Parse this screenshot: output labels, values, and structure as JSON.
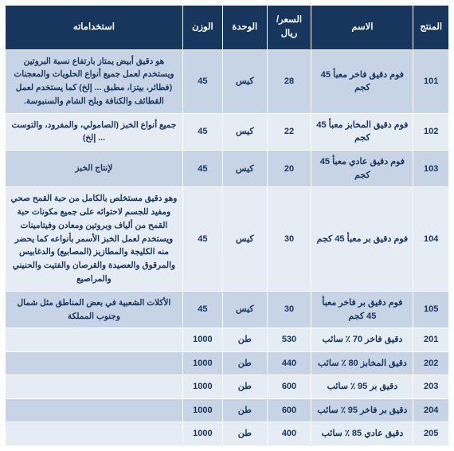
{
  "columns": {
    "product": "المنتج",
    "name": "الاسم",
    "price": "السعر/ ريال",
    "unit": "الوحدة",
    "weight": "الوزن",
    "uses": "استخداماته"
  },
  "rows": [
    {
      "product": "101",
      "name": "فوم دقيق فاخر معبأ 45 كجم",
      "price": "28",
      "unit": "كيس",
      "weight": "45",
      "uses": "هو دقيق أبيض يمتاز بارتفاع نسبة البروتين ويستخدم لعمل جميع أنواع الحلويات والمعجنات (فطائر، بيتزا، مطبق ... إلخ) كما يستخدم لعمل القطائف والكنافة وبلح الشام والسنبوسة."
    },
    {
      "product": "102",
      "name": "فوم دقيق المخابز معبأ 45 كجم",
      "price": "22",
      "unit": "كيس",
      "weight": "45",
      "uses": "جميع أنواع الخبز (الصامولي، والمفرود، والتوست ... إلخ)"
    },
    {
      "product": "103",
      "name": "فوم دقيق عادي معبأ 45 كجم",
      "price": "20",
      "unit": "كيس",
      "weight": "45",
      "uses": "لإنتاج الخبز"
    },
    {
      "product": "104",
      "name": "فوم دقيق بر معبأ 45 كجم",
      "price": "30",
      "unit": "كيس",
      "weight": "45",
      "uses": "وهو دقيق مستخلص بالكامل من حبة القمح صحي ومفيد للجسم لاحتوائه على جميع مكونات حبة القمح من ألياف وبروتين ومعادن وفيتامينات ويستخدم لعمل الخبز الأسمر بأنواعه كما يحضر منه الكليجة والمطازيز (المصابيع) والدغابيس والمرقوق والعصيدة والقرصان والفتيت والحنيني والمراصيع"
    },
    {
      "product": "105",
      "name": "فوم دقيق بر فاخر معبأ 45 كجم",
      "price": "30",
      "unit": "كيس",
      "weight": "45",
      "uses": "الأكلات الشعبية في بعض المناطق مثل شمال وجنوب المملكة"
    },
    {
      "product": "201",
      "name": "دقيق فاخر 70 ٪ سائب",
      "price": "530",
      "unit": "طن",
      "weight": "1000",
      "uses": ""
    },
    {
      "product": "202",
      "name": "دقيق المخابز 80 ٪ سائب",
      "price": "440",
      "unit": "طن",
      "weight": "1000",
      "uses": ""
    },
    {
      "product": "203",
      "name": "دقيق بر 95 ٪ سائب",
      "price": "600",
      "unit": "طن",
      "weight": "1000",
      "uses": ""
    },
    {
      "product": "204",
      "name": "دقيق بر فاخر 95 ٪ سائب",
      "price": "600",
      "unit": "طن",
      "weight": "1000",
      "uses": ""
    },
    {
      "product": "205",
      "name": "دقيق عادي 85 ٪ سائب",
      "price": "400",
      "unit": "طن",
      "weight": "1000",
      "uses": ""
    }
  ],
  "style": {
    "header_bg": "#17365d",
    "header_fg": "#ffffff",
    "row_bg": "#c6d4e6",
    "row_alt_bg": "#e6ecf4",
    "cell_fg": "#17365d",
    "border_color": "#ffffff",
    "font_family": "Tahoma",
    "header_fontsize_pt": 11.5,
    "cell_fontsize_pt": 11,
    "uses_fontsize_pt": 10.5
  }
}
